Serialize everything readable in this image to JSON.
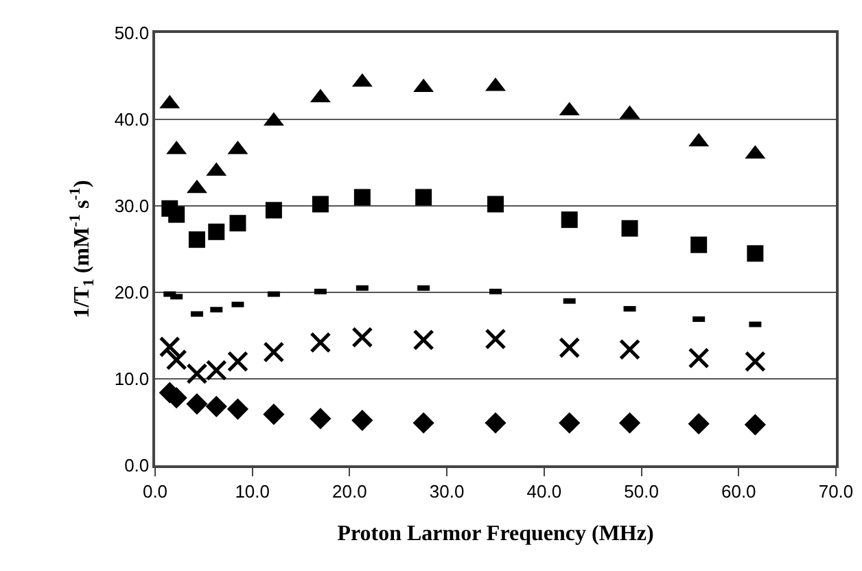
{
  "chart_data": {
    "type": "scatter",
    "xlabel": "Proton Larmor Frequency (MHz)",
    "ylabel": "1/T$_{1}$ (mM$^{-1}$ s$^{-1}$)",
    "x": [
      1.5,
      2.2,
      4.3,
      6.3,
      8.5,
      12.2,
      17.0,
      21.3,
      27.6,
      35.0,
      42.6,
      48.8,
      55.9,
      61.7
    ],
    "series": [
      {
        "color": "#000000",
        "marker": "triangle",
        "values": [
          41.8,
          36.5,
          32.0,
          34.0,
          36.5,
          39.8,
          42.5,
          44.3,
          43.7,
          43.8,
          41.0,
          40.6,
          37.4,
          36.0
        ]
      },
      {
        "color": "#000000",
        "marker": "square",
        "values": [
          29.7,
          29.0,
          26.1,
          27.0,
          28.0,
          29.5,
          30.2,
          31.0,
          31.0,
          30.2,
          28.4,
          27.4,
          25.5,
          24.5
        ]
      },
      {
        "color": "#000000",
        "values": [
          19.8,
          19.5,
          17.5,
          18.0,
          18.6,
          19.8,
          20.1,
          20.5,
          20.5,
          20.1,
          19.0,
          18.1,
          16.9,
          16.3
        ]
      },
      {
        "color": "#000000",
        "marker": "cross",
        "values": [
          13.7,
          12.2,
          10.6,
          11.0,
          12.0,
          13.1,
          14.2,
          14.8,
          14.5,
          14.6,
          13.6,
          13.4,
          12.4,
          12.0
        ]
      },
      {
        "color": "#000000",
        "marker": "diamond",
        "values": [
          8.4,
          7.8,
          7.1,
          6.8,
          6.5,
          5.9,
          5.4,
          5.2,
          4.9,
          4.9,
          4.9,
          4.9,
          4.8,
          4.7
        ]
      }
    ],
    "xlim": [
      0,
      70
    ],
    "xticks": [
      {
        "value": 0,
        "label": "0.0"
      },
      {
        "value": 10,
        "label": "10.0"
      },
      {
        "value": 20,
        "label": "20.0"
      },
      {
        "value": 30,
        "label": "30.0"
      },
      {
        "value": 40,
        "label": "40.0"
      },
      {
        "value": 50,
        "label": "50.0"
      },
      {
        "value": 60,
        "label": "60.0"
      },
      {
        "value": 70,
        "label": "70.0"
      }
    ],
    "ylim": [
      0,
      50
    ],
    "yticks": [
      {
        "value": 0,
        "label": "0.0"
      },
      {
        "value": 10,
        "label": "10.0"
      },
      {
        "value": 20,
        "label": "20.0"
      },
      {
        "value": 30,
        "label": "30.0"
      },
      {
        "value": 40,
        "label": "40.0"
      },
      {
        "value": 50,
        "label": "50.0"
      }
    ],
    "grid": "y"
  }
}
